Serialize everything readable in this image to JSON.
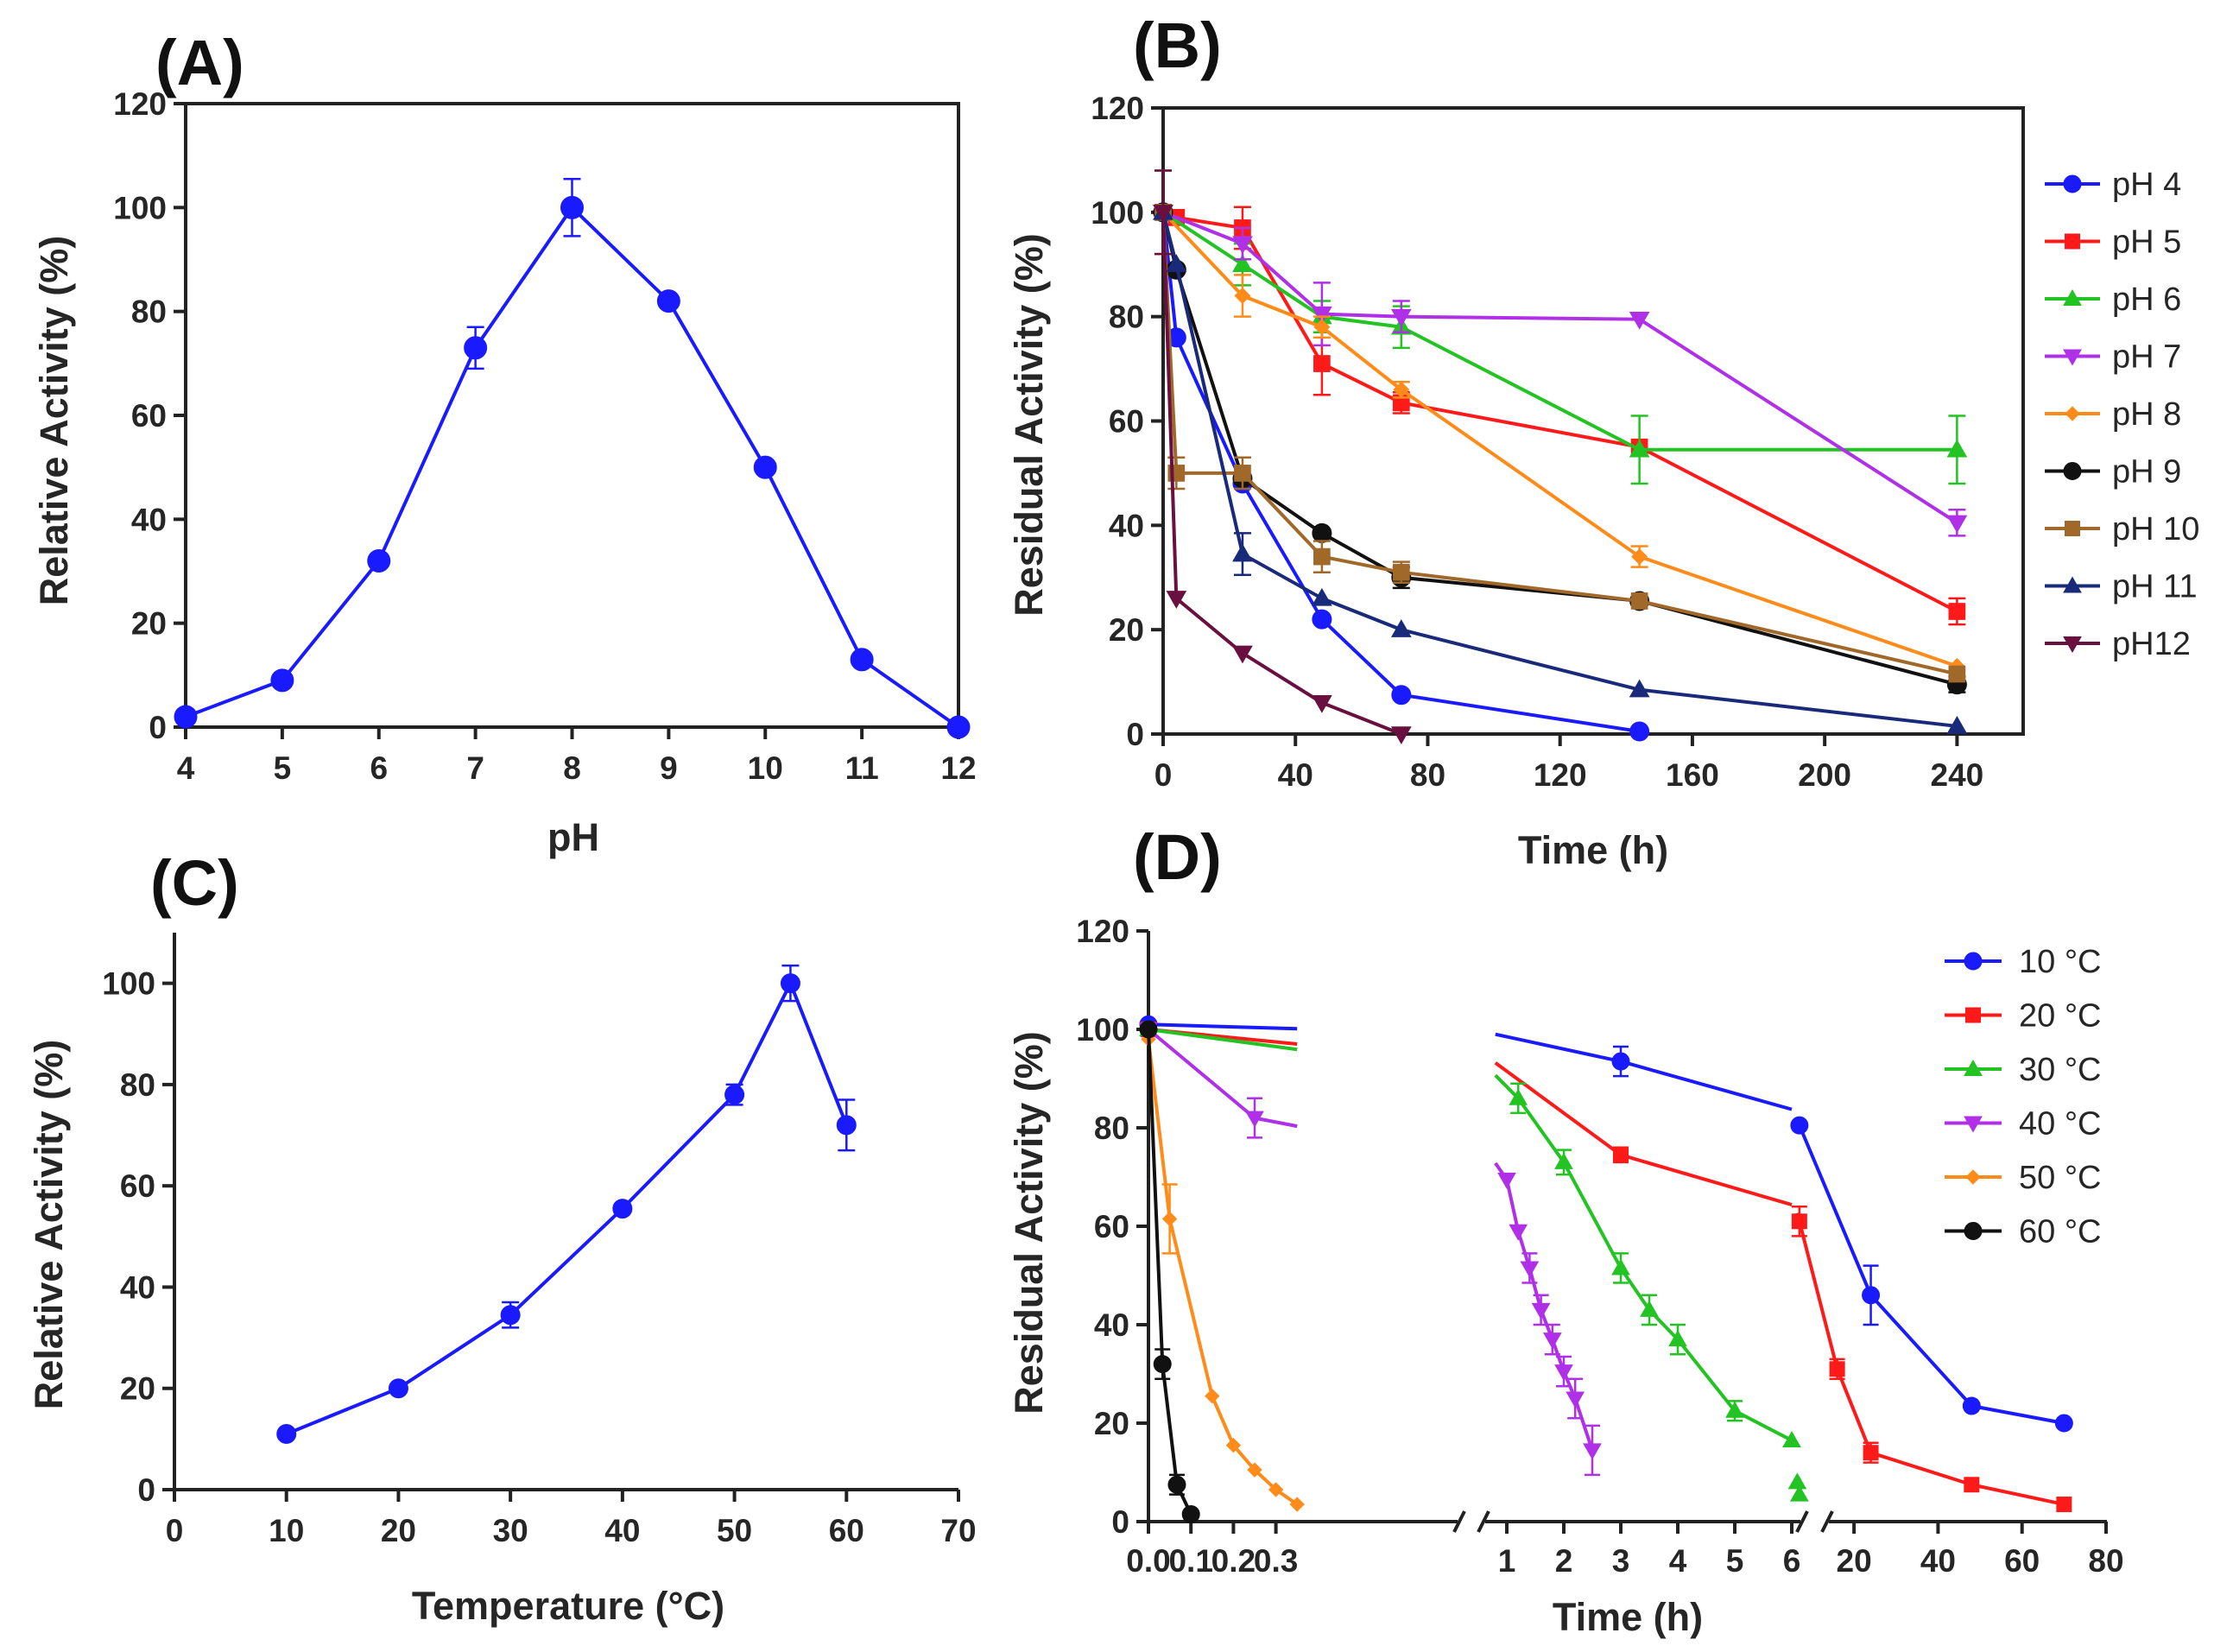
{
  "colors": {
    "blue": "#1a1aff",
    "red": "#ff1a1a",
    "green": "#22c322",
    "violet": "#b030e8",
    "orange": "#ff8c1a",
    "black": "#111111",
    "brown": "#a0692a",
    "navy": "#1a2a7a",
    "maroon": "#6a1040",
    "axis": "#222222"
  },
  "chart_data": [
    {
      "id": "A",
      "panel_label": "(A)",
      "type": "line",
      "xlabel": "pH",
      "ylabel": "Relative Activity (%)",
      "xlim": [
        4,
        12
      ],
      "ylim": [
        0,
        120
      ],
      "x_ticks": [
        4,
        5,
        6,
        7,
        8,
        9,
        10,
        11,
        12
      ],
      "y_ticks": [
        0,
        20,
        40,
        60,
        80,
        100,
        120
      ],
      "series": [
        {
          "name": "pH profile",
          "color": "blue",
          "marker": "circle",
          "x": [
            4,
            5,
            6,
            7,
            8,
            9,
            10,
            11,
            12
          ],
          "y": [
            2,
            9,
            32,
            73,
            100,
            82,
            50,
            13,
            0
          ],
          "err": [
            0,
            0,
            0,
            4,
            5.5,
            0,
            0,
            0,
            0
          ]
        }
      ]
    },
    {
      "id": "B",
      "panel_label": "(B)",
      "type": "line",
      "xlabel": "Time (h)",
      "ylabel": "Residual Activity (%)",
      "xlim": [
        0,
        260
      ],
      "ylim": [
        0,
        120
      ],
      "x_ticks": [
        0,
        40,
        80,
        120,
        160,
        200,
        240
      ],
      "y_ticks": [
        0,
        20,
        40,
        60,
        80,
        100,
        120
      ],
      "legend_position": "right",
      "series": [
        {
          "name": "pH 4",
          "color": "blue",
          "marker": "circle",
          "x": [
            0,
            4,
            24,
            48,
            72,
            144
          ],
          "y": [
            100,
            76,
            48,
            22,
            7.5,
            0.5
          ],
          "err": [
            0,
            0,
            0,
            0,
            0,
            0
          ]
        },
        {
          "name": "pH 5",
          "color": "red",
          "marker": "square",
          "x": [
            0,
            4,
            24,
            48,
            72,
            144,
            240
          ],
          "y": [
            100,
            99,
            97,
            71,
            63.5,
            55,
            23.5
          ],
          "err": [
            0,
            0,
            4,
            6,
            2,
            0,
            2.5
          ]
        },
        {
          "name": "pH 6",
          "color": "green",
          "marker": "triangle-up",
          "x": [
            0,
            24,
            48,
            72,
            144,
            240
          ],
          "y": [
            100,
            90,
            80,
            78,
            54.5,
            54.5
          ],
          "err": [
            0,
            4,
            3,
            4,
            6.5,
            6.5
          ]
        },
        {
          "name": "pH 7",
          "color": "violet",
          "marker": "triangle-down",
          "x": [
            0,
            24,
            48,
            72,
            144,
            240
          ],
          "y": [
            100,
            94,
            80.5,
            80,
            79.5,
            40.5
          ],
          "err": [
            0,
            3,
            6,
            3,
            0,
            2.5
          ]
        },
        {
          "name": "pH 8",
          "color": "orange",
          "marker": "diamond",
          "x": [
            0,
            24,
            48,
            72,
            144,
            240
          ],
          "y": [
            100,
            84,
            78,
            66,
            34,
            13
          ],
          "err": [
            0,
            4,
            2,
            1.5,
            2,
            0
          ]
        },
        {
          "name": "pH 9",
          "color": "black",
          "marker": "circle",
          "x": [
            0,
            4,
            24,
            48,
            72,
            144,
            240
          ],
          "y": [
            100,
            89,
            49,
            38.5,
            30,
            25.5,
            9.5
          ],
          "err": [
            0,
            0,
            0,
            0,
            2,
            0,
            1.5
          ]
        },
        {
          "name": "pH 10",
          "color": "brown",
          "marker": "square",
          "x": [
            0,
            4,
            24,
            48,
            72,
            144,
            240
          ],
          "y": [
            100,
            50,
            50,
            34,
            31,
            25.5,
            11.5
          ],
          "err": [
            8,
            3,
            3,
            3,
            2,
            0,
            0
          ]
        },
        {
          "name": "pH 11",
          "color": "navy",
          "marker": "triangle-up",
          "x": [
            0,
            4,
            24,
            48,
            72,
            144,
            240
          ],
          "y": [
            100,
            90,
            34.5,
            26,
            20,
            8.5,
            1.5
          ],
          "err": [
            0,
            0,
            4,
            0,
            0,
            0,
            0
          ]
        },
        {
          "name": "pH12",
          "color": "maroon",
          "marker": "triangle-down",
          "x": [
            0,
            4,
            24,
            48,
            72
          ],
          "y": [
            100,
            26,
            15.5,
            6,
            0
          ],
          "err": [
            8,
            0,
            0,
            0,
            0
          ]
        }
      ]
    },
    {
      "id": "C",
      "panel_label": "(C)",
      "type": "line",
      "xlabel": "Temperature (°C)",
      "ylabel": "Relative Activity (%)",
      "xlim": [
        0,
        70
      ],
      "ylim": [
        0,
        110
      ],
      "x_ticks": [
        0,
        10,
        20,
        30,
        40,
        50,
        60,
        70
      ],
      "y_ticks": [
        0,
        20,
        40,
        60,
        80,
        100
      ],
      "series": [
        {
          "name": "temperature profile",
          "color": "blue",
          "marker": "circle",
          "x": [
            10,
            20,
            30,
            40,
            50,
            55,
            60
          ],
          "y": [
            11,
            20,
            34.5,
            55.5,
            78,
            100,
            72
          ],
          "err": [
            0,
            0,
            2.5,
            0,
            2,
            3.5,
            5
          ]
        }
      ]
    },
    {
      "id": "D",
      "panel_label": "(D)",
      "type": "line",
      "xlabel": "Time (h)",
      "ylabel": "Residual Activity (%)",
      "ylim": [
        0,
        120
      ],
      "y_ticks": [
        0,
        20,
        40,
        60,
        80,
        100,
        120
      ],
      "x_axis": "broken into three segments: 0-0.35, 0.8-6, 6-80",
      "x_ticks": [
        "0.0",
        "0.1",
        "0.2",
        "0.3",
        "1",
        "2",
        "3",
        "4",
        "5",
        "6",
        "20",
        "40",
        "60",
        "80"
      ],
      "legend_position": "top-right",
      "series": [
        {
          "name": "10 °C",
          "color": "blue",
          "marker": "circle",
          "x": [
            0,
            3,
            7,
            24,
            48,
            70
          ],
          "y": [
            101,
            93.5,
            80.5,
            46,
            23.5,
            20
          ],
          "err": [
            0,
            3,
            0,
            6,
            0,
            0
          ]
        },
        {
          "name": "20 °C",
          "color": "red",
          "marker": "square",
          "x": [
            0,
            3,
            7,
            16,
            24,
            48,
            70
          ],
          "y": [
            100,
            74.5,
            61,
            31,
            14,
            7.5,
            3.5
          ],
          "err": [
            0,
            1.5,
            3,
            2,
            2,
            0,
            0
          ]
        },
        {
          "name": "30 °C",
          "color": "green",
          "marker": "triangle-up",
          "x": [
            0,
            1.2,
            2,
            3,
            3.5,
            4,
            5,
            6,
            6.5,
            7
          ],
          "y": [
            100,
            86,
            73,
            51.5,
            43,
            37,
            22.5,
            16.5,
            8,
            5.5
          ],
          "err": [
            0,
            3,
            2.5,
            3,
            3,
            3,
            2,
            0,
            0,
            0
          ]
        },
        {
          "name": "40 °C",
          "color": "violet",
          "marker": "triangle-down",
          "x": [
            0,
            0.25,
            1,
            1.2,
            1.4,
            1.6,
            1.8,
            2.0,
            2.2,
            2.5
          ],
          "y": [
            100,
            82,
            69.5,
            59,
            51.5,
            43,
            37,
            30.5,
            25,
            14.5
          ],
          "err": [
            0,
            4,
            0,
            0,
            3,
            3,
            3,
            3,
            4,
            5
          ]
        },
        {
          "name": "50 °C",
          "color": "orange",
          "marker": "diamond",
          "x": [
            0,
            0.05,
            0.15,
            0.2,
            0.25,
            0.3,
            0.35
          ],
          "y": [
            98,
            61.5,
            25.5,
            15.5,
            10.5,
            6.5,
            3.5
          ],
          "err": [
            0,
            7,
            0,
            0,
            0,
            0,
            0
          ]
        },
        {
          "name": "60 °C",
          "color": "black",
          "marker": "circle",
          "x": [
            0,
            0.033,
            0.067,
            0.1
          ],
          "y": [
            100,
            32,
            7.5,
            1.5
          ],
          "err": [
            0,
            3,
            2,
            0
          ]
        }
      ]
    }
  ]
}
